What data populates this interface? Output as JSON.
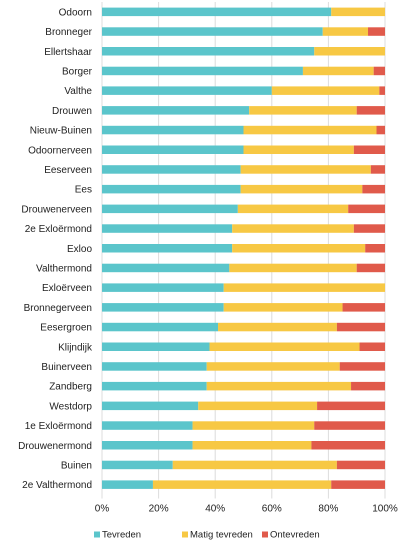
{
  "chart_data": {
    "type": "bar",
    "orientation": "horizontal",
    "stacked": "percent",
    "categories": [
      "Odoorn",
      "Bronneger",
      "Ellertshaar",
      "Borger",
      "Valthe",
      "Drouwen",
      "Nieuw-Buinen",
      "Odoornerveen",
      "Eeserveen",
      "Ees",
      "Drouwenerveen",
      "2e Exloërmond",
      "Exloo",
      "Valthermond",
      "Exloërveen",
      "Bronnegerveen",
      "Eesergroen",
      "Klijndijk",
      "Buinerveen",
      "Zandberg",
      "Westdorp",
      "1e Exloërmond",
      "Drouwenermond",
      "Buinen",
      "2e Valthermond"
    ],
    "series": [
      {
        "name": "Tevreden",
        "color": "#5bc5cb",
        "values": [
          81,
          78,
          75,
          71,
          60,
          52,
          50,
          50,
          49,
          49,
          48,
          46,
          46,
          45,
          43,
          43,
          41,
          38,
          37,
          37,
          34,
          32,
          32,
          25,
          18
        ]
      },
      {
        "name": "Matig tevreden",
        "color": "#f7c844",
        "values": [
          19,
          16,
          25,
          25,
          38,
          38,
          47,
          39,
          46,
          43,
          39,
          43,
          47,
          45,
          57,
          42,
          42,
          53,
          47,
          51,
          42,
          43,
          42,
          58,
          63
        ]
      },
      {
        "name": "Ontevreden",
        "color": "#e05a4b",
        "values": [
          0,
          6,
          0,
          4,
          2,
          10,
          3,
          11,
          5,
          8,
          13,
          11,
          7,
          10,
          0,
          15,
          17,
          9,
          16,
          12,
          24,
          25,
          26,
          17,
          19
        ]
      }
    ],
    "xaxis": {
      "ticks": [
        "0%",
        "20%",
        "40%",
        "60%",
        "80%",
        "100%"
      ],
      "range": [
        0,
        100
      ]
    },
    "grid": true,
    "legend": {
      "position": "bottom"
    }
  }
}
